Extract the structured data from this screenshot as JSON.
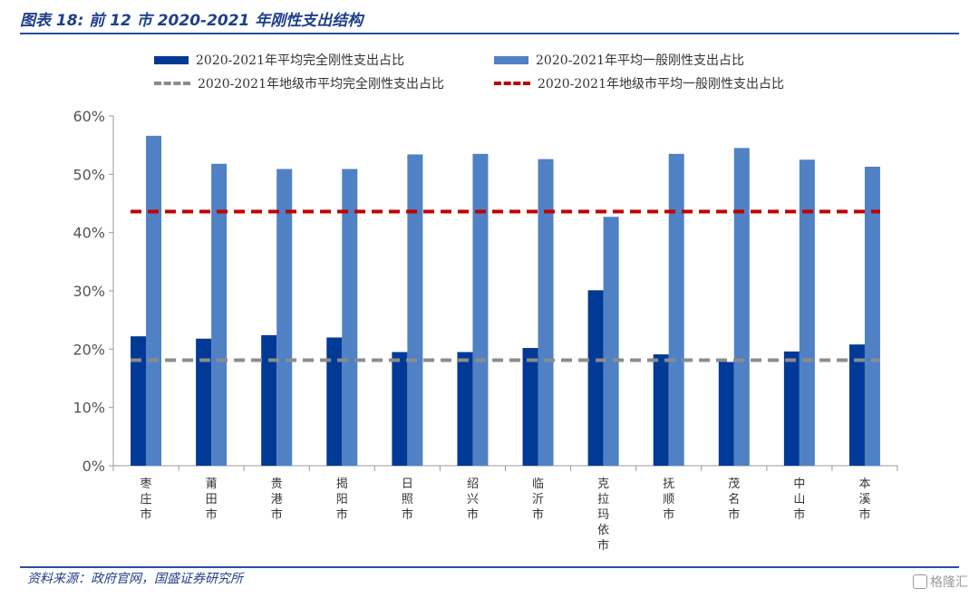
{
  "figure": {
    "title": "图表 18:  前 12 市 2020-2021 年刚性支出结构",
    "source": "资料来源：政府官网，国盛证券研究所",
    "watermark": "格隆汇"
  },
  "colors": {
    "dark_blue": "#003a96",
    "light_blue": "#4f81c4",
    "gray_dash": "#8c8c8c",
    "red_dash": "#c00000",
    "title_blue": "#1f3f8a"
  },
  "chart_data": {
    "type": "bar",
    "categories": [
      "枣庄市",
      "莆田市",
      "贵港市",
      "揭阳市",
      "日照市",
      "绍兴市",
      "临沂市",
      "克拉玛依市",
      "抚顺市",
      "茂名市",
      "中山市",
      "本溪市"
    ],
    "series": [
      {
        "name": "2020-2021年平均完全刚性支出占比",
        "kind": "bar",
        "values": [
          22.2,
          21.8,
          22.4,
          22.0,
          19.5,
          19.5,
          20.2,
          30.1,
          19.1,
          17.8,
          19.6,
          20.8
        ]
      },
      {
        "name": "2020-2021年平均一般刚性支出占比",
        "kind": "bar",
        "values": [
          56.6,
          51.8,
          50.9,
          50.9,
          53.4,
          53.5,
          52.6,
          42.7,
          53.5,
          54.5,
          52.5,
          51.3
        ]
      },
      {
        "name": "2020-2021年地级市平均完全刚性支出占比",
        "kind": "dashed-line",
        "values": [
          18.1,
          18.1,
          18.1,
          18.1,
          18.1,
          18.1,
          18.1,
          18.1,
          18.1,
          18.1,
          18.1,
          18.1
        ]
      },
      {
        "name": "2020-2021年地级市平均一般刚性支出占比",
        "kind": "dashed-line",
        "values": [
          43.6,
          43.6,
          43.6,
          43.6,
          43.6,
          43.6,
          43.6,
          43.6,
          43.6,
          43.6,
          43.6,
          43.6
        ]
      }
    ],
    "ylim": [
      0,
      60
    ],
    "yticks": [
      0,
      10,
      20,
      30,
      40,
      50,
      60
    ],
    "ytick_labels": [
      "0%",
      "10%",
      "20%",
      "30%",
      "40%",
      "50%",
      "60%"
    ],
    "grid": false,
    "legend_position": "top"
  }
}
